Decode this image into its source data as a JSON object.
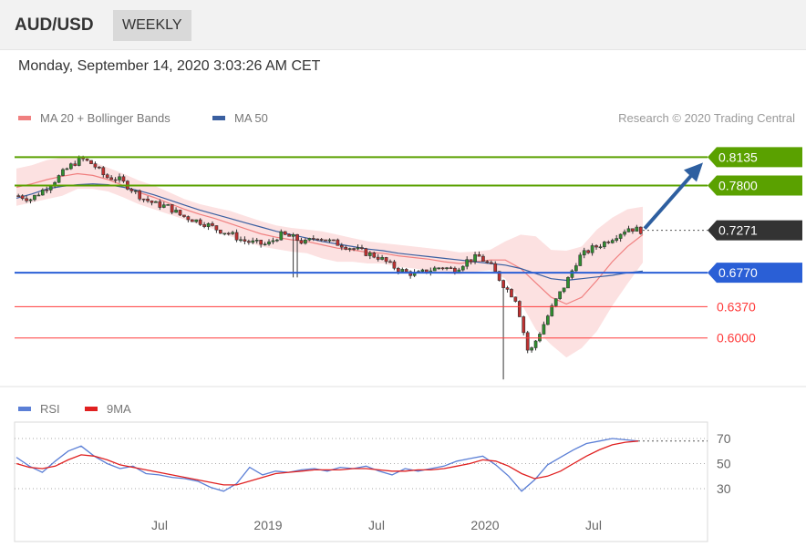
{
  "header": {
    "symbol": "AUD/USD",
    "period": "WEEKLY"
  },
  "datetime": "Monday, September 14, 2020 3:03:26 AM CET",
  "legend": {
    "ma20": {
      "label": "MA 20 + Bollinger Bands",
      "color": "#f08080"
    },
    "ma50": {
      "label": "MA 50",
      "color": "#3a5fa0"
    },
    "credit": "Research © 2020 Trading Central"
  },
  "rsi_legend": {
    "rsi": {
      "label": "RSI",
      "color": "#5b7fd6"
    },
    "ma9": {
      "label": "9MA",
      "color": "#e02020"
    }
  },
  "colors": {
    "resistance": "#5aa100",
    "current": "#333333",
    "pivot": "#2a5fd6",
    "support": "#ff3a3a",
    "up_candle": "#2f8f2f",
    "down_candle": "#c03030",
    "band_fill": "#fbdcdc",
    "arrow": "#2e5fa0"
  },
  "chart_data": [
    {
      "type": "candlestick",
      "title": "AUD/USD WEEKLY",
      "x_tick_labels": [
        "Jul",
        "2019",
        "Jul",
        "2020",
        "Jul"
      ],
      "x_tick_dates": [
        "2018-07",
        "2019-01",
        "2019-07",
        "2020-01",
        "2020-07"
      ],
      "x_range": [
        "2017-10",
        "2020-09"
      ],
      "y_range": [
        0.548,
        0.829
      ],
      "grid": false,
      "levels": [
        {
          "name": "resistance2",
          "value": 0.8135,
          "label": "0.8135",
          "style": "resistance"
        },
        {
          "name": "resistance1",
          "value": 0.78,
          "label": "0.7800",
          "style": "resistance"
        },
        {
          "name": "current",
          "value": 0.7271,
          "label": "0.7271",
          "style": "current"
        },
        {
          "name": "pivot",
          "value": 0.677,
          "label": "0.6770",
          "style": "pivot"
        },
        {
          "name": "support1",
          "value": 0.637,
          "label": "0.6370",
          "style": "support"
        },
        {
          "name": "support2",
          "value": 0.6,
          "label": "0.6000",
          "style": "support"
        }
      ],
      "trend_arrow": {
        "from": 0.7271,
        "to": 0.8135,
        "direction": "up"
      },
      "series": [
        {
          "name": "MA 20 + Bollinger Bands",
          "kind": "bollinger",
          "y_ma": [
            0.778,
            0.782,
            0.787,
            0.791,
            0.794,
            0.792,
            0.787,
            0.78,
            0.772,
            0.766,
            0.759,
            0.752,
            0.746,
            0.741,
            0.735,
            0.729,
            0.723,
            0.719,
            0.716,
            0.714,
            0.71,
            0.706,
            0.704,
            0.701,
            0.7,
            0.697,
            0.695,
            0.693,
            0.69,
            0.688,
            0.69,
            0.692,
            0.692,
            0.682,
            0.665,
            0.648,
            0.64,
            0.648,
            0.668,
            0.69,
            0.708,
            0.722
          ],
          "y_upper": [
            0.8,
            0.804,
            0.81,
            0.813,
            0.812,
            0.808,
            0.801,
            0.794,
            0.786,
            0.78,
            0.772,
            0.764,
            0.758,
            0.754,
            0.75,
            0.744,
            0.738,
            0.733,
            0.73,
            0.728,
            0.726,
            0.722,
            0.718,
            0.714,
            0.712,
            0.71,
            0.708,
            0.706,
            0.704,
            0.701,
            0.702,
            0.704,
            0.714,
            0.722,
            0.72,
            0.704,
            0.703,
            0.708,
            0.728,
            0.742,
            0.752,
            0.755
          ],
          "y_lower": [
            0.756,
            0.76,
            0.764,
            0.768,
            0.776,
            0.776,
            0.773,
            0.766,
            0.758,
            0.752,
            0.746,
            0.74,
            0.734,
            0.728,
            0.72,
            0.714,
            0.708,
            0.705,
            0.702,
            0.7,
            0.694,
            0.69,
            0.69,
            0.688,
            0.688,
            0.684,
            0.682,
            0.68,
            0.676,
            0.675,
            0.678,
            0.68,
            0.67,
            0.642,
            0.61,
            0.592,
            0.577,
            0.588,
            0.608,
            0.638,
            0.664,
            0.689
          ]
        },
        {
          "name": "MA 50",
          "kind": "line",
          "y": [
            0.765,
            0.77,
            0.776,
            0.779,
            0.781,
            0.782,
            0.781,
            0.778,
            0.774,
            0.769,
            0.763,
            0.757,
            0.751,
            0.746,
            0.741,
            0.736,
            0.731,
            0.726,
            0.722,
            0.718,
            0.714,
            0.711,
            0.708,
            0.705,
            0.703,
            0.7,
            0.698,
            0.696,
            0.694,
            0.692,
            0.69,
            0.688,
            0.686,
            0.682,
            0.676,
            0.67,
            0.668,
            0.67,
            0.672,
            0.674,
            0.677,
            0.679
          ]
        },
        {
          "name": "AUD/USD",
          "kind": "candles",
          "x_weeks_span": 155,
          "close_trace": [
            0.768,
            0.764,
            0.775,
            0.787,
            0.801,
            0.812,
            0.805,
            0.79,
            0.788,
            0.777,
            0.765,
            0.758,
            0.755,
            0.745,
            0.74,
            0.735,
            0.728,
            0.723,
            0.715,
            0.712,
            0.71,
            0.722,
            0.719,
            0.712,
            0.72,
            0.714,
            0.71,
            0.705,
            0.7,
            0.695,
            0.685,
            0.678,
            0.675,
            0.68,
            0.684,
            0.68,
            0.691,
            0.696,
            0.684,
            0.662,
            0.645,
            0.58,
            0.61,
            0.64,
            0.665,
            0.695,
            0.705,
            0.712,
            0.721,
            0.73,
            0.727
          ],
          "low_trace_min": 0.551
        }
      ]
    },
    {
      "type": "line",
      "title": "RSI",
      "y_ticks": [
        70,
        50,
        30
      ],
      "y_range": [
        20,
        80
      ],
      "series": [
        {
          "name": "RSI",
          "y": [
            55,
            48,
            43,
            52,
            60,
            64,
            56,
            50,
            46,
            48,
            42,
            41,
            39,
            38,
            36,
            31,
            28,
            34,
            47,
            41,
            44,
            43,
            45,
            46,
            44,
            47,
            46,
            48,
            44,
            41,
            46,
            44,
            46,
            48,
            52,
            54,
            56,
            49,
            40,
            28,
            37,
            49,
            55,
            61,
            66,
            68,
            70,
            69,
            68
          ]
        },
        {
          "name": "9MA",
          "y": [
            50,
            47,
            46,
            48,
            53,
            57,
            56,
            53,
            49,
            47,
            45,
            43,
            41,
            39,
            37,
            35,
            33,
            33,
            36,
            39,
            42,
            43,
            44,
            45,
            45,
            45,
            46,
            46,
            45,
            44,
            44,
            45,
            45,
            46,
            48,
            50,
            53,
            52,
            48,
            42,
            38,
            40,
            44,
            50,
            56,
            61,
            65,
            67,
            68
          ]
        }
      ]
    }
  ]
}
